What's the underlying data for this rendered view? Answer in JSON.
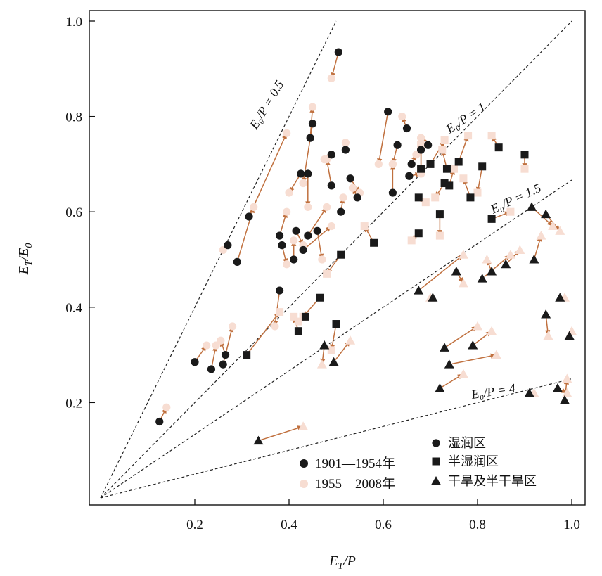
{
  "chart_data": {
    "type": "scatter",
    "xlabel": "E_T/P",
    "ylabel": "E_T/E_0",
    "xlim": [
      0,
      1.03
    ],
    "ylim": [
      0,
      1.0
    ],
    "x_ticks": [
      "0.2",
      "0.4",
      "0.6",
      "0.8",
      "1.0"
    ],
    "y_ticks": [
      "0.2",
      "0.4",
      "0.6",
      "0.8",
      "1.0"
    ],
    "reference_lines": [
      {
        "label": "E₀/P = 0.5",
        "ratio": 0.5
      },
      {
        "label": "E₀/P = 1",
        "ratio": 1
      },
      {
        "label": "E₀/P = 1.5",
        "ratio": 1.5
      },
      {
        "label": "E₀/P = 4",
        "ratio": 4
      }
    ],
    "period_legend": [
      {
        "label": "1901—1954年",
        "color": "#1a1a1a"
      },
      {
        "label": "1955—2008年",
        "color": "#f7ddd2"
      }
    ],
    "zone_legend": [
      {
        "label": "湿润区",
        "marker": "circle"
      },
      {
        "label": "半湿润区",
        "marker": "square"
      },
      {
        "label": "干旱及半干旱区",
        "marker": "triangle"
      }
    ],
    "arrow_color": "#c0703e",
    "point_color_1901": "#1a1a1a",
    "point_color_1955": "#f7ddd2",
    "series": [
      {
        "name": "湿润区",
        "marker": "circle",
        "pairs": [
          [
            0.125,
            0.16,
            0.14,
            0.19
          ],
          [
            0.2,
            0.285,
            0.225,
            0.32
          ],
          [
            0.235,
            0.27,
            0.245,
            0.32
          ],
          [
            0.26,
            0.28,
            0.28,
            0.36
          ],
          [
            0.265,
            0.3,
            0.255,
            0.33
          ],
          [
            0.27,
            0.53,
            0.26,
            0.52
          ],
          [
            0.29,
            0.495,
            0.325,
            0.61
          ],
          [
            0.315,
            0.59,
            0.395,
            0.765
          ],
          [
            0.38,
            0.435,
            0.37,
            0.36
          ],
          [
            0.38,
            0.55,
            0.395,
            0.6
          ],
          [
            0.385,
            0.53,
            0.395,
            0.49
          ],
          [
            0.41,
            0.5,
            0.41,
            0.54
          ],
          [
            0.415,
            0.56,
            0.43,
            0.53
          ],
          [
            0.425,
            0.68,
            0.4,
            0.64
          ],
          [
            0.43,
            0.52,
            0.49,
            0.57
          ],
          [
            0.44,
            0.55,
            0.48,
            0.61
          ],
          [
            0.44,
            0.68,
            0.44,
            0.61
          ],
          [
            0.445,
            0.755,
            0.45,
            0.82
          ],
          [
            0.45,
            0.785,
            0.43,
            0.66
          ],
          [
            0.46,
            0.56,
            0.47,
            0.5
          ],
          [
            0.49,
            0.655,
            0.48,
            0.71
          ],
          [
            0.49,
            0.72,
            0.475,
            0.71
          ],
          [
            0.51,
            0.6,
            0.515,
            0.63
          ],
          [
            0.52,
            0.73,
            0.52,
            0.745
          ],
          [
            0.53,
            0.67,
            0.55,
            0.64
          ],
          [
            0.545,
            0.63,
            0.535,
            0.65
          ],
          [
            0.505,
            0.935,
            0.49,
            0.88
          ],
          [
            0.61,
            0.81,
            0.59,
            0.7
          ],
          [
            0.62,
            0.64,
            0.62,
            0.7
          ],
          [
            0.63,
            0.74,
            0.62,
            0.7
          ],
          [
            0.65,
            0.775,
            0.64,
            0.8
          ],
          [
            0.655,
            0.675,
            0.68,
            0.68
          ],
          [
            0.66,
            0.7,
            0.67,
            0.72
          ],
          [
            0.68,
            0.73,
            0.68,
            0.68
          ],
          [
            0.695,
            0.74,
            0.68,
            0.755
          ]
        ]
      },
      {
        "name": "半湿润区",
        "marker": "square",
        "pairs": [
          [
            0.31,
            0.3,
            0.38,
            0.39
          ],
          [
            0.42,
            0.35,
            0.41,
            0.38
          ],
          [
            0.435,
            0.38,
            0.42,
            0.37
          ],
          [
            0.465,
            0.42,
            0.43,
            0.38
          ],
          [
            0.5,
            0.365,
            0.49,
            0.31
          ],
          [
            0.51,
            0.51,
            0.48,
            0.47
          ],
          [
            0.58,
            0.535,
            0.56,
            0.57
          ],
          [
            0.675,
            0.555,
            0.66,
            0.54
          ],
          [
            0.675,
            0.63,
            0.69,
            0.62
          ],
          [
            0.68,
            0.69,
            0.68,
            0.74
          ],
          [
            0.7,
            0.7,
            0.73,
            0.75
          ],
          [
            0.72,
            0.595,
            0.72,
            0.55
          ],
          [
            0.73,
            0.66,
            0.71,
            0.63
          ],
          [
            0.735,
            0.69,
            0.725,
            0.73
          ],
          [
            0.74,
            0.655,
            0.75,
            0.69
          ],
          [
            0.76,
            0.705,
            0.78,
            0.76
          ],
          [
            0.785,
            0.63,
            0.77,
            0.67
          ],
          [
            0.81,
            0.695,
            0.8,
            0.64
          ],
          [
            0.83,
            0.585,
            0.87,
            0.6
          ],
          [
            0.845,
            0.735,
            0.83,
            0.76
          ],
          [
            0.9,
            0.72,
            0.9,
            0.69
          ]
        ]
      },
      {
        "name": "干旱及半干旱区",
        "marker": "triangle",
        "pairs": [
          [
            0.335,
            0.12,
            0.43,
            0.15
          ],
          [
            0.475,
            0.32,
            0.47,
            0.28
          ],
          [
            0.495,
            0.285,
            0.53,
            0.33
          ],
          [
            0.675,
            0.435,
            0.77,
            0.51
          ],
          [
            0.705,
            0.42,
            0.7,
            0.42
          ],
          [
            0.72,
            0.23,
            0.77,
            0.26
          ],
          [
            0.73,
            0.315,
            0.8,
            0.36
          ],
          [
            0.74,
            0.28,
            0.84,
            0.3
          ],
          [
            0.755,
            0.475,
            0.77,
            0.45
          ],
          [
            0.79,
            0.32,
            0.83,
            0.35
          ],
          [
            0.81,
            0.46,
            0.87,
            0.51
          ],
          [
            0.83,
            0.475,
            0.82,
            0.5
          ],
          [
            0.86,
            0.49,
            0.89,
            0.52
          ],
          [
            0.91,
            0.22,
            0.92,
            0.22
          ],
          [
            0.915,
            0.61,
            0.96,
            0.57
          ],
          [
            0.92,
            0.5,
            0.935,
            0.55
          ],
          [
            0.945,
            0.385,
            0.95,
            0.34
          ],
          [
            0.945,
            0.595,
            0.975,
            0.56
          ],
          [
            0.97,
            0.23,
            0.99,
            0.22
          ],
          [
            0.975,
            0.42,
            0.985,
            0.42
          ],
          [
            0.985,
            0.205,
            0.99,
            0.25
          ],
          [
            0.995,
            0.34,
            1.0,
            0.35
          ]
        ]
      }
    ]
  }
}
